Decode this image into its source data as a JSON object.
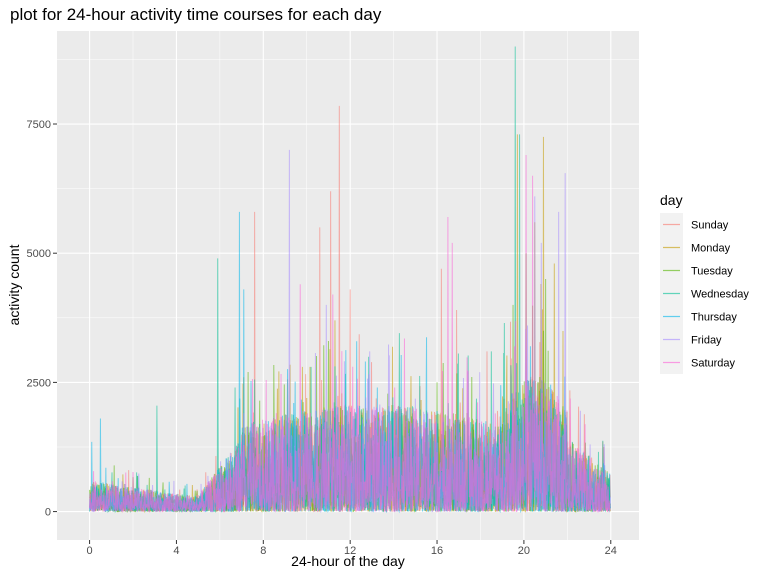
{
  "chart_data": {
    "type": "line",
    "title": "plot for 24-hour activity time courses for each day",
    "xlabel": "24-hour of the day",
    "ylabel": "activity count",
    "xlim": [
      -1.5,
      25.3
    ],
    "ylim": [
      -550,
      9300
    ],
    "x_ticks": [
      0,
      4,
      8,
      12,
      16,
      20,
      24
    ],
    "x_tick_labels": [
      "0",
      "4",
      "8",
      "12",
      "16",
      "20",
      "24"
    ],
    "y_ticks": [
      0,
      2500,
      5000,
      7500
    ],
    "y_tick_labels": [
      "0",
      "2500",
      "5000",
      "7500"
    ],
    "grid": true,
    "legend": {
      "title": "day",
      "position": "right"
    },
    "series": [
      {
        "name": "Sunday",
        "color": "#F8766D",
        "peaks": [
          [
            7.6,
            5800
          ],
          [
            10.6,
            5500
          ],
          [
            11.1,
            6200
          ],
          [
            11.5,
            7850
          ],
          [
            12.0,
            4300
          ],
          [
            16.2,
            4700
          ],
          [
            16.9,
            3900
          ],
          [
            18.3,
            3100
          ]
        ]
      },
      {
        "name": "Monday",
        "color": "#C49A00",
        "peaks": [
          [
            7.1,
            2600
          ],
          [
            9.8,
            2800
          ],
          [
            11.3,
            3700
          ],
          [
            19.7,
            7300
          ],
          [
            20.5,
            5600
          ],
          [
            20.9,
            7250
          ],
          [
            21.4,
            4800
          ]
        ]
      },
      {
        "name": "Tuesday",
        "color": "#53B400",
        "peaks": [
          [
            7.3,
            2700
          ],
          [
            11.0,
            3300
          ],
          [
            16.0,
            2500
          ],
          [
            19.5,
            4000
          ],
          [
            20.1,
            5000
          ],
          [
            21.0,
            4500
          ]
        ]
      },
      {
        "name": "Wednesday",
        "color": "#00C094",
        "peaks": [
          [
            3.1,
            2050
          ],
          [
            5.9,
            4900
          ],
          [
            6.7,
            2400
          ],
          [
            10.2,
            2800
          ],
          [
            18.5,
            3100
          ],
          [
            19.1,
            3650
          ],
          [
            19.6,
            9000
          ],
          [
            19.8,
            7300
          ]
        ]
      },
      {
        "name": "Thursday",
        "color": "#00B6EB",
        "peaks": [
          [
            0.1,
            1350
          ],
          [
            0.5,
            1800
          ],
          [
            6.9,
            5800
          ],
          [
            7.1,
            4300
          ],
          [
            9.4,
            2100
          ],
          [
            20.3,
            3200
          ]
        ]
      },
      {
        "name": "Friday",
        "color": "#A58AFF",
        "peaks": [
          [
            9.2,
            7000
          ],
          [
            10.9,
            4000
          ],
          [
            20.5,
            6100
          ],
          [
            20.8,
            5200
          ],
          [
            21.6,
            5800
          ],
          [
            21.9,
            6550
          ],
          [
            22.6,
            1950
          ]
        ]
      },
      {
        "name": "Saturday",
        "color": "#FB61D7",
        "peaks": [
          [
            9.7,
            4400
          ],
          [
            11.2,
            4200
          ],
          [
            14.5,
            3350
          ],
          [
            16.5,
            5700
          ],
          [
            16.7,
            5200
          ],
          [
            20.1,
            6900
          ],
          [
            20.4,
            6500
          ]
        ]
      }
    ]
  }
}
